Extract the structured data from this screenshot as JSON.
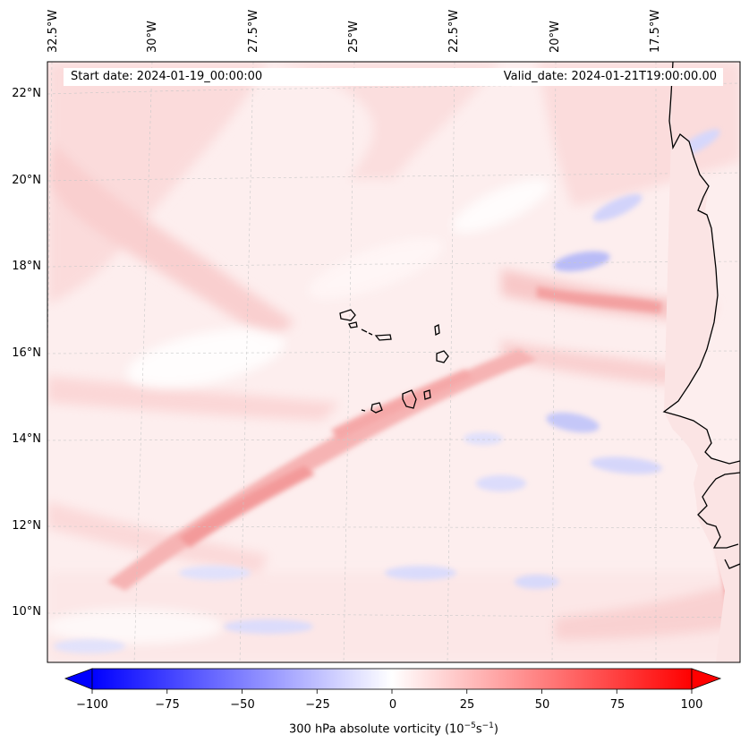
{
  "header": {
    "start_date": "Start date: 2024-01-19_00:00:00",
    "valid_date": "Valid_date: 2024-01-21T19:00:00.00"
  },
  "longitude_labels": [
    "32.5°W",
    "30°W",
    "27.5°W",
    "25°W",
    "22.5°W",
    "20°W",
    "17.5°W"
  ],
  "latitude_labels": [
    "22°N",
    "20°N",
    "18°N",
    "16°N",
    "14°N",
    "12°N",
    "10°N"
  ],
  "colorbar": {
    "min": -100,
    "max": 100,
    "ticks": [
      "−100",
      "−75",
      "−50",
      "−25",
      "0",
      "25",
      "50",
      "75",
      "100"
    ],
    "label": "300 hPa absolute vorticity",
    "units_base": "10",
    "units_exp1": "−5",
    "units_s": "s",
    "units_exp2": "−1",
    "colormap": [
      "#0000ff",
      "#ffffff",
      "#ff0000"
    ],
    "extend": "both"
  },
  "map": {
    "coastline_color": "#000000",
    "gridline_color": "#c8c8c8"
  }
}
